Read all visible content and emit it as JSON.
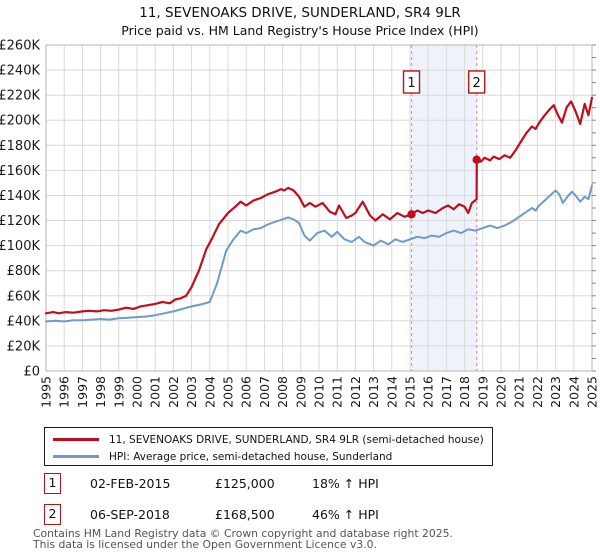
{
  "title": "11, SEVENOAKS DRIVE, SUNDERLAND, SR4 9LR",
  "subtitle": "Price paid vs. HM Land Registry's House Price Index (HPI)",
  "chart_data": {
    "type": "line",
    "x_range": [
      1995,
      2025
    ],
    "y_range": [
      0,
      260
    ],
    "y_unit": "£1000",
    "grid": true,
    "legend_position": "bottom",
    "x_tick_labels": [
      "1995",
      "1996",
      "1997",
      "1998",
      "1999",
      "2000",
      "2001",
      "2002",
      "2003",
      "2004",
      "2005",
      "2006",
      "2007",
      "2008",
      "2009",
      "2010",
      "2011",
      "2012",
      "2013",
      "2014",
      "2015",
      "2016",
      "2017",
      "2018",
      "2019",
      "2020",
      "2021",
      "2022",
      "2023",
      "2024",
      "2025"
    ],
    "y_ticks": [
      {
        "value": 0,
        "label": "£0"
      },
      {
        "value": 20,
        "label": "£20K"
      },
      {
        "value": 40,
        "label": "£40K"
      },
      {
        "value": 60,
        "label": "£60K"
      },
      {
        "value": 80,
        "label": "£80K"
      },
      {
        "value": 100,
        "label": "£100K"
      },
      {
        "value": 120,
        "label": "£120K"
      },
      {
        "value": 140,
        "label": "£140K"
      },
      {
        "value": 160,
        "label": "£160K"
      },
      {
        "value": 180,
        "label": "£180K"
      },
      {
        "value": 200,
        "label": "£200K"
      },
      {
        "value": 220,
        "label": "£220K"
      },
      {
        "value": 240,
        "label": "£240K"
      },
      {
        "value": 260,
        "label": "£260K"
      }
    ],
    "series": [
      {
        "name": "11, SEVENOAKS DRIVE, SUNDERLAND, SR4 9LR (semi-detached house)",
        "color": "#c00d1d",
        "points": [
          [
            1995.0,
            46
          ],
          [
            1995.4,
            47
          ],
          [
            1995.7,
            46
          ],
          [
            1996.1,
            47
          ],
          [
            1996.5,
            46.5
          ],
          [
            1997.0,
            47.5
          ],
          [
            1997.4,
            48
          ],
          [
            1997.8,
            47.5
          ],
          [
            1998.2,
            48.5
          ],
          [
            1998.6,
            48
          ],
          [
            1999.0,
            49
          ],
          [
            1999.4,
            50.5
          ],
          [
            1999.8,
            49.5
          ],
          [
            2000.2,
            51.5
          ],
          [
            2000.6,
            52.5
          ],
          [
            2001.0,
            53.5
          ],
          [
            2001.4,
            55
          ],
          [
            2001.8,
            54
          ],
          [
            2002.1,
            57
          ],
          [
            2002.4,
            58
          ],
          [
            2002.7,
            60
          ],
          [
            2003.0,
            67
          ],
          [
            2003.4,
            80
          ],
          [
            2003.8,
            97
          ],
          [
            2004.1,
            105
          ],
          [
            2004.5,
            117
          ],
          [
            2005.0,
            126
          ],
          [
            2005.4,
            131
          ],
          [
            2005.7,
            135
          ],
          [
            2006.0,
            132
          ],
          [
            2006.4,
            136
          ],
          [
            2006.8,
            138
          ],
          [
            2007.2,
            141
          ],
          [
            2007.6,
            143
          ],
          [
            2007.9,
            145
          ],
          [
            2008.1,
            144
          ],
          [
            2008.3,
            146
          ],
          [
            2008.6,
            144
          ],
          [
            2008.9,
            139
          ],
          [
            2009.2,
            131
          ],
          [
            2009.5,
            134
          ],
          [
            2009.8,
            131
          ],
          [
            2010.2,
            134
          ],
          [
            2010.6,
            127
          ],
          [
            2010.9,
            125
          ],
          [
            2011.1,
            132
          ],
          [
            2011.5,
            122
          ],
          [
            2011.8,
            124
          ],
          [
            2012.0,
            126
          ],
          [
            2012.4,
            135
          ],
          [
            2012.8,
            124
          ],
          [
            2013.1,
            120
          ],
          [
            2013.5,
            125
          ],
          [
            2013.9,
            121
          ],
          [
            2014.3,
            126
          ],
          [
            2014.7,
            123
          ],
          [
            2015.083,
            125
          ],
          [
            2015.4,
            128
          ],
          [
            2015.7,
            126
          ],
          [
            2016.0,
            128
          ],
          [
            2016.4,
            126
          ],
          [
            2016.8,
            130
          ],
          [
            2017.1,
            132
          ],
          [
            2017.4,
            129
          ],
          [
            2017.7,
            133
          ],
          [
            2018.0,
            131
          ],
          [
            2018.2,
            126
          ],
          [
            2018.4,
            134
          ],
          [
            2018.66,
            137
          ],
          [
            2018.67,
            168.5
          ],
          [
            2018.9,
            167
          ],
          [
            2019.1,
            170
          ],
          [
            2019.4,
            168
          ],
          [
            2019.6,
            171
          ],
          [
            2019.9,
            169
          ],
          [
            2020.2,
            172
          ],
          [
            2020.5,
            170
          ],
          [
            2020.8,
            176
          ],
          [
            2021.1,
            183
          ],
          [
            2021.4,
            190
          ],
          [
            2021.7,
            195
          ],
          [
            2021.9,
            193
          ],
          [
            2022.1,
            198
          ],
          [
            2022.4,
            204
          ],
          [
            2022.7,
            209
          ],
          [
            2022.9,
            212
          ],
          [
            2023.1,
            205
          ],
          [
            2023.35,
            198
          ],
          [
            2023.6,
            210
          ],
          [
            2023.85,
            215
          ],
          [
            2024.1,
            207
          ],
          [
            2024.35,
            197
          ],
          [
            2024.6,
            213
          ],
          [
            2024.8,
            204
          ],
          [
            2025.0,
            218
          ]
        ]
      },
      {
        "name": "HPI: Average price, semi-detached house, Sunderland",
        "color": "#6e9bcc",
        "points": [
          [
            1995.0,
            39.5
          ],
          [
            1995.5,
            40
          ],
          [
            1996.0,
            39.5
          ],
          [
            1996.5,
            40.5
          ],
          [
            1997.0,
            40.5
          ],
          [
            1997.5,
            41
          ],
          [
            1998.0,
            41.5
          ],
          [
            1998.5,
            41
          ],
          [
            1999.0,
            42
          ],
          [
            1999.5,
            42.5
          ],
          [
            2000.0,
            43
          ],
          [
            2000.5,
            43.5
          ],
          [
            2001.0,
            44.5
          ],
          [
            2001.5,
            46
          ],
          [
            2002.0,
            47.5
          ],
          [
            2002.5,
            49.5
          ],
          [
            2003.0,
            51.5
          ],
          [
            2003.5,
            53
          ],
          [
            2004.0,
            55
          ],
          [
            2004.4,
            70
          ],
          [
            2004.9,
            96
          ],
          [
            2005.3,
            105
          ],
          [
            2005.7,
            112
          ],
          [
            2006.0,
            110
          ],
          [
            2006.4,
            113
          ],
          [
            2006.8,
            114
          ],
          [
            2007.2,
            117
          ],
          [
            2007.6,
            119
          ],
          [
            2008.0,
            121
          ],
          [
            2008.3,
            122.5
          ],
          [
            2008.6,
            121
          ],
          [
            2008.9,
            118
          ],
          [
            2009.2,
            108
          ],
          [
            2009.5,
            104
          ],
          [
            2009.9,
            110
          ],
          [
            2010.3,
            112
          ],
          [
            2010.7,
            107
          ],
          [
            2011.0,
            111
          ],
          [
            2011.4,
            105
          ],
          [
            2011.8,
            103
          ],
          [
            2012.2,
            107
          ],
          [
            2012.5,
            103
          ],
          [
            2013.0,
            100
          ],
          [
            2013.4,
            104
          ],
          [
            2013.8,
            101
          ],
          [
            2014.2,
            105
          ],
          [
            2014.6,
            103
          ],
          [
            2015.0,
            105
          ],
          [
            2015.4,
            107
          ],
          [
            2015.8,
            106
          ],
          [
            2016.2,
            108
          ],
          [
            2016.6,
            107
          ],
          [
            2017.0,
            110
          ],
          [
            2017.4,
            112
          ],
          [
            2017.8,
            110
          ],
          [
            2018.2,
            113
          ],
          [
            2018.6,
            112
          ],
          [
            2019.0,
            114
          ],
          [
            2019.4,
            116
          ],
          [
            2019.8,
            114
          ],
          [
            2020.2,
            116
          ],
          [
            2020.6,
            119
          ],
          [
            2021.0,
            123
          ],
          [
            2021.4,
            127
          ],
          [
            2021.7,
            130
          ],
          [
            2021.9,
            128
          ],
          [
            2022.1,
            132
          ],
          [
            2022.4,
            136
          ],
          [
            2022.7,
            140
          ],
          [
            2023.0,
            144
          ],
          [
            2023.2,
            141
          ],
          [
            2023.4,
            134
          ],
          [
            2023.7,
            140
          ],
          [
            2023.9,
            143
          ],
          [
            2024.1,
            140
          ],
          [
            2024.35,
            135
          ],
          [
            2024.6,
            139
          ],
          [
            2024.8,
            137
          ],
          [
            2025.0,
            148
          ]
        ]
      }
    ],
    "sales": [
      {
        "label": "1",
        "x": 2015.083,
        "y": 125,
        "date": "02-FEB-2015",
        "price": "£125,000",
        "vs_hpi": "18% ↑ HPI"
      },
      {
        "label": "2",
        "x": 2018.667,
        "y": 168.5,
        "date": "06-SEP-2018",
        "price": "£168,500",
        "vs_hpi": "46% ↑ HPI"
      }
    ],
    "shaded_region": {
      "from": 2015.083,
      "to": 2018.667,
      "color": "#eef3fb"
    },
    "annotation_colors": {
      "dashed_line": "#f09090",
      "marker_box_border": "#b01818"
    }
  },
  "footer": {
    "line1": "Contains HM Land Registry data © Crown copyright and database right 2025.",
    "line2": "This data is licensed under the Open Government Licence v3.0."
  }
}
